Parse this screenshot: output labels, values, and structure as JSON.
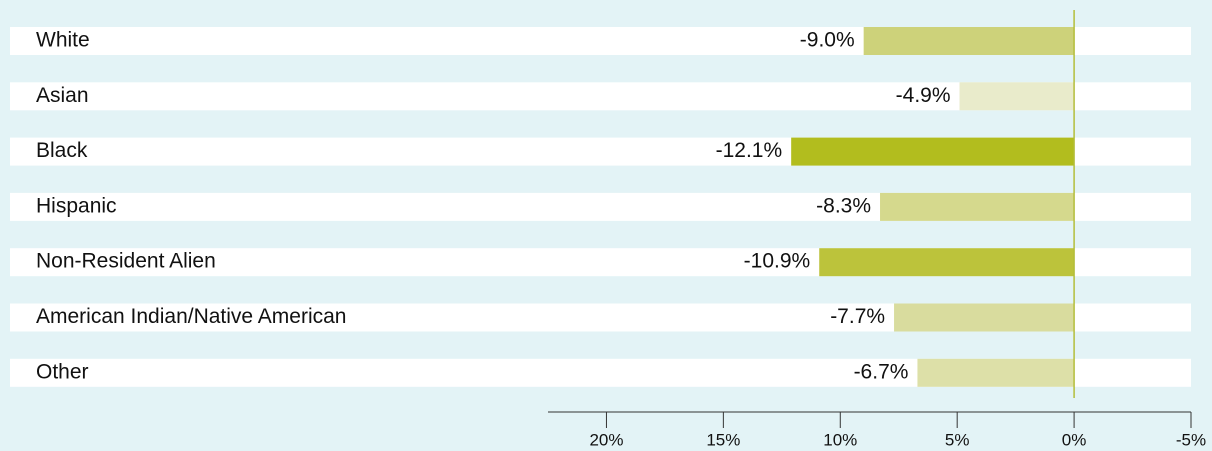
{
  "chart_data": {
    "type": "hbar",
    "categories": [
      "White",
      "Asian",
      "Black",
      "Hispanic",
      "Non-Resident Alien",
      "American Indian/Native American",
      "Other"
    ],
    "values": [
      -9.0,
      -4.9,
      -12.1,
      -8.3,
      -10.9,
      -7.7,
      -6.7
    ],
    "value_labels": [
      "-9.0%",
      "-4.9%",
      "-12.1%",
      "-8.3%",
      "-10.9%",
      "-7.7%",
      "-6.7%"
    ],
    "colors": [
      "#cdd27a",
      "#e9ebcb",
      "#b2bd1e",
      "#d5d98d",
      "#bcc33b",
      "#d9dc9e",
      "#dde0a8"
    ],
    "xlim": [
      -22.5,
      5
    ],
    "xticks": [
      {
        "value": -20,
        "label": "20%"
      },
      {
        "value": -15,
        "label": "15%"
      },
      {
        "value": -10,
        "label": "10%"
      },
      {
        "value": -5,
        "label": "5%"
      },
      {
        "value": 0,
        "label": "0%"
      },
      {
        "value": 5,
        "label": "-5%"
      }
    ]
  }
}
